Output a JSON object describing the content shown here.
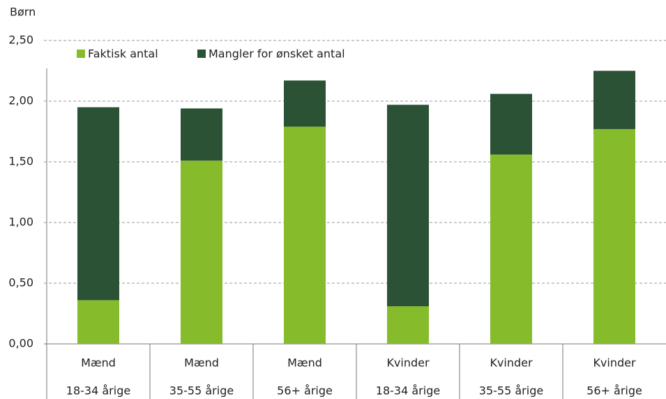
{
  "chart_data": {
    "type": "stacked_bar",
    "y_axis_label": "Børn",
    "categories": [
      [
        "Mænd",
        "18-34 årige"
      ],
      [
        "Mænd",
        "35-55 årige"
      ],
      [
        "Mænd",
        "56+ årige"
      ],
      [
        "Kvinder",
        "18-34 årige"
      ],
      [
        "Kvinder",
        "35-55 årige"
      ],
      [
        "Kvinder",
        "56+ årige"
      ]
    ],
    "series": [
      {
        "name": "Faktisk antal",
        "color": "#86bc2b",
        "values": [
          0.36,
          1.51,
          1.79,
          0.31,
          1.56,
          1.77
        ]
      },
      {
        "name": "Mangler for ønsket antal",
        "color": "#2b5234",
        "values": [
          1.59,
          0.43,
          0.38,
          1.66,
          0.5,
          0.48
        ]
      }
    ],
    "ylim": [
      0,
      2.5
    ],
    "yticks": [
      {
        "value": 0,
        "label": "0,00"
      },
      {
        "value": 0.5,
        "label": "0,50"
      },
      {
        "value": 1,
        "label": "1,00"
      },
      {
        "value": 1.5,
        "label": "1,50"
      },
      {
        "value": 2,
        "label": "2,00"
      },
      {
        "value": 2.5,
        "label": "2,50"
      }
    ],
    "grid": true
  }
}
